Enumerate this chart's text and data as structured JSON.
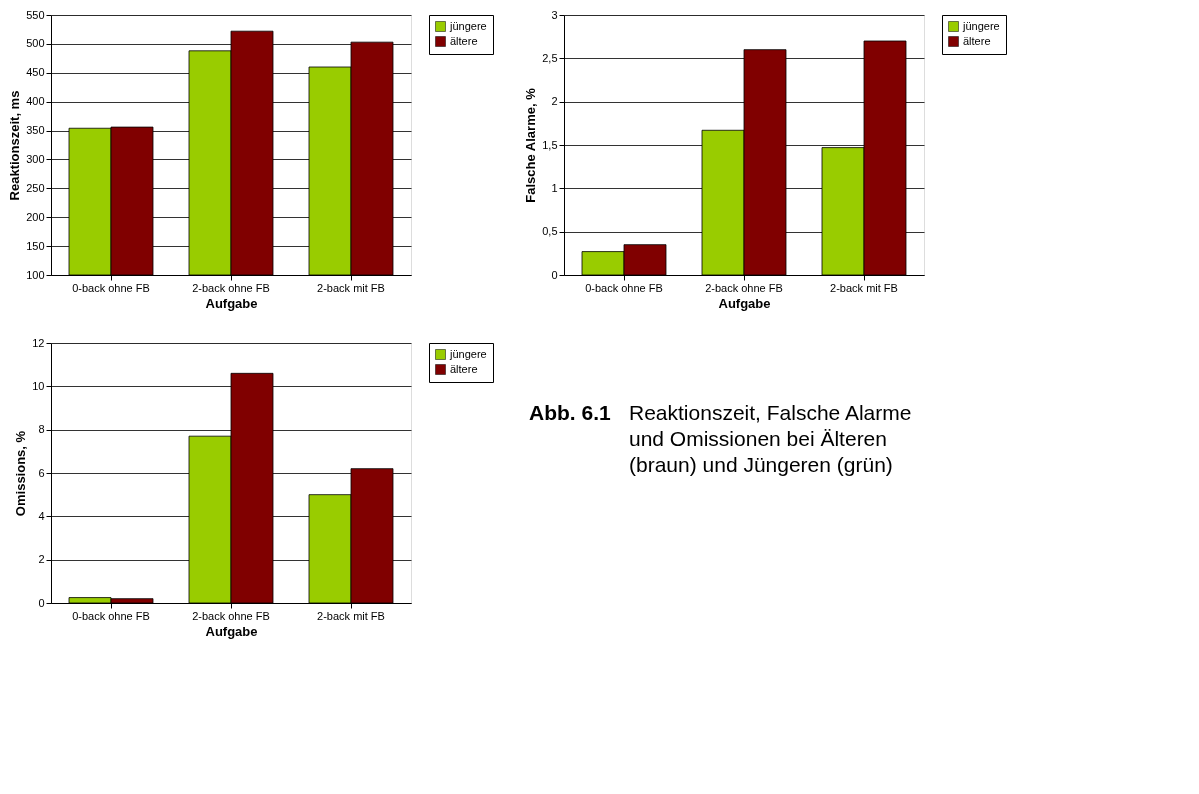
{
  "chart_data": [
    {
      "type": "bar",
      "xlabel": "Aufgabe",
      "ylabel": "Reaktionszeit, ms",
      "categories": [
        "0-back ohne FB",
        "2-back ohne FB",
        "2-back mit FB"
      ],
      "series": [
        {
          "name": "jüngere",
          "color": "#99cc00",
          "values": [
            354,
            488,
            460
          ]
        },
        {
          "name": "ältere",
          "color": "#800000",
          "values": [
            356,
            522,
            503
          ]
        }
      ],
      "ylim": [
        100,
        550
      ],
      "yticks": [
        100,
        150,
        200,
        250,
        300,
        350,
        400,
        450,
        500,
        550
      ],
      "grid": "y",
      "legend": "right"
    },
    {
      "type": "bar",
      "xlabel": "Aufgabe",
      "ylabel": "Falsche Alarme, %",
      "categories": [
        "0-back ohne FB",
        "2-back ohne FB",
        "2-back mit FB"
      ],
      "series": [
        {
          "name": "jüngere",
          "color": "#99cc00",
          "values": [
            0.27,
            1.67,
            1.47
          ]
        },
        {
          "name": "ältere",
          "color": "#800000",
          "values": [
            0.35,
            2.6,
            2.7
          ]
        }
      ],
      "ylim": [
        0,
        3
      ],
      "yticks": [
        0,
        {
          "value": 0.5,
          "label": "0,5"
        },
        1,
        {
          "value": 1.5,
          "label": "1,5"
        },
        2,
        {
          "value": 2.5,
          "label": "2,5"
        },
        3
      ],
      "grid": "y",
      "legend": "right"
    },
    {
      "type": "bar",
      "xlabel": "Aufgabe",
      "ylabel": "Omissions, %",
      "categories": [
        "0-back ohne FB",
        "2-back ohne FB",
        "2-back mit FB"
      ],
      "series": [
        {
          "name": "jüngere",
          "color": "#99cc00",
          "values": [
            0.25,
            7.7,
            5.0
          ]
        },
        {
          "name": "ältere",
          "color": "#800000",
          "values": [
            0.2,
            10.6,
            6.2
          ]
        }
      ],
      "ylim": [
        0,
        12
      ],
      "yticks": [
        0,
        2,
        4,
        6,
        8,
        10,
        12
      ],
      "grid": "y",
      "legend": "right"
    },
    {
      "type": "other",
      "annotations": [
        "Abb. 6.1",
        "Reaktionszeit, Falsche Alarme und Omissionen bei Älteren (braun) und Jüngeren (grün)"
      ]
    }
  ]
}
